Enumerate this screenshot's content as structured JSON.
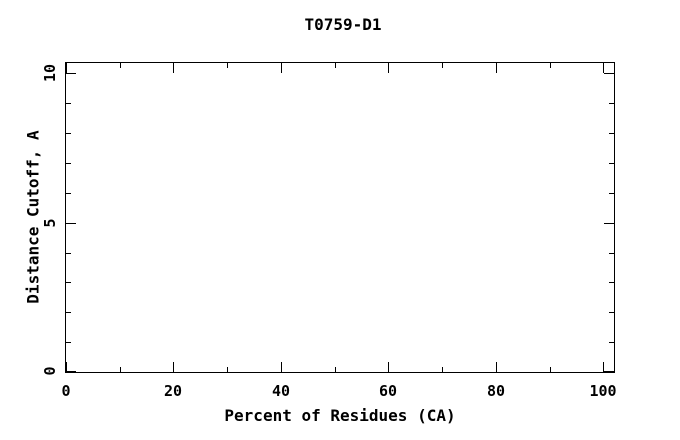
{
  "page": {
    "background_color": "#ffffff",
    "line_color": "#000000"
  },
  "chart_data": {
    "type": "line",
    "title": "T0759-D1",
    "xlabel": "Percent of Residues (CA)",
    "ylabel": "Distance Cutoff, A",
    "xlim": [
      0,
      102
    ],
    "ylim": [
      0,
      10.35
    ],
    "x_major_ticks": [
      0,
      20,
      40,
      60,
      80,
      100
    ],
    "x_tick_labels": [
      "0",
      "20",
      "40",
      "60",
      "80",
      "100"
    ],
    "x_minor_ticks": [
      10,
      30,
      50,
      70,
      90
    ],
    "y_major_ticks": [
      0,
      5,
      10
    ],
    "y_tick_labels": [
      "0",
      "5",
      "10"
    ],
    "y_minor_ticks": [
      1,
      2,
      3,
      4,
      6,
      7,
      8,
      9
    ],
    "grid": false,
    "legend": null,
    "series": []
  }
}
